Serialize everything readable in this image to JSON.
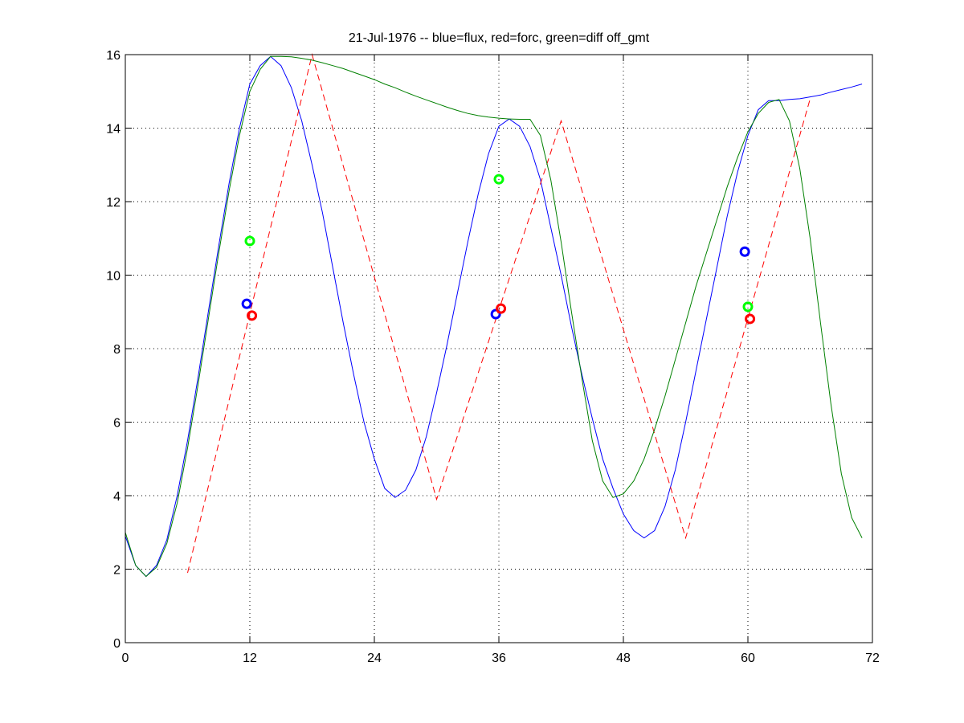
{
  "chart_data": {
    "type": "line",
    "title": "21-Jul-1976 -- blue=flux, red=forc, green=diff off_gmt",
    "xlabel": "",
    "ylabel": "",
    "xlim": [
      0,
      72
    ],
    "ylim": [
      0,
      16
    ],
    "xticks": [
      0,
      12,
      24,
      36,
      48,
      60,
      72
    ],
    "yticks": [
      0,
      2,
      4,
      6,
      8,
      10,
      12,
      14,
      16
    ],
    "grid": true,
    "series": [
      {
        "color": "#0000ff",
        "style": "solid",
        "x": [
          0,
          1,
          2,
          3,
          4,
          5,
          6,
          7,
          8,
          9,
          10,
          11,
          12,
          13,
          14,
          15,
          16,
          17,
          18,
          19,
          20,
          21,
          22,
          23,
          24,
          25,
          26,
          27,
          28,
          29,
          30,
          31,
          32,
          33,
          34,
          35,
          36,
          37,
          38,
          39,
          40,
          41,
          42,
          43,
          44,
          45,
          46,
          47,
          48,
          49,
          50,
          51,
          52,
          53,
          54,
          55,
          56,
          57,
          58,
          59,
          60,
          61,
          62,
          63,
          64,
          65,
          66,
          67,
          68,
          69,
          70,
          71
        ],
        "y": [
          2.9,
          2.1,
          1.8,
          2.1,
          2.8,
          4.0,
          5.5,
          7.2,
          9.0,
          10.8,
          12.5,
          14.0,
          15.2,
          15.7,
          15.95,
          15.7,
          15.1,
          14.2,
          13.0,
          11.7,
          10.2,
          8.7,
          7.3,
          6.0,
          5.0,
          4.2,
          3.95,
          4.15,
          4.7,
          5.6,
          6.8,
          8.1,
          9.5,
          10.9,
          12.2,
          13.3,
          14.05,
          14.25,
          14.05,
          13.5,
          12.6,
          11.3,
          10.0,
          8.6,
          7.3,
          6.1,
          5.0,
          4.2,
          3.5,
          3.05,
          2.85,
          3.05,
          3.7,
          4.7,
          6.0,
          7.4,
          8.8,
          10.2,
          11.6,
          12.8,
          13.8,
          14.5,
          14.75,
          14.75,
          14.78,
          14.8,
          14.85,
          14.9,
          14.98,
          15.05,
          15.12,
          15.2
        ]
      },
      {
        "color": "#ff0000",
        "style": "dashed",
        "x": [
          6,
          18,
          30,
          42,
          54,
          66
        ],
        "y": [
          1.9,
          16.0,
          3.9,
          14.2,
          2.85,
          14.8
        ]
      },
      {
        "color": "#008000",
        "style": "solid",
        "x": [
          0,
          1,
          2,
          3,
          4,
          5,
          6,
          7,
          8,
          9,
          10,
          11,
          12,
          13,
          14,
          15,
          16,
          17,
          18,
          19,
          20,
          21,
          22,
          23,
          24,
          25,
          26,
          27,
          28,
          29,
          30,
          31,
          32,
          33,
          34,
          35,
          36,
          37,
          38,
          39,
          40,
          41,
          42,
          43,
          44,
          45,
          46,
          47,
          48,
          49,
          50,
          51,
          52,
          53,
          54,
          55,
          56,
          57,
          58,
          59,
          60,
          61,
          62,
          63,
          64,
          65,
          66,
          67,
          68,
          69,
          70,
          71
        ],
        "y": [
          3.0,
          2.1,
          1.8,
          2.05,
          2.7,
          3.8,
          5.3,
          7.0,
          8.8,
          10.6,
          12.3,
          13.8,
          15.0,
          15.6,
          15.95,
          15.95,
          15.94,
          15.9,
          15.85,
          15.78,
          15.7,
          15.62,
          15.52,
          15.42,
          15.32,
          15.2,
          15.1,
          14.98,
          14.87,
          14.77,
          14.67,
          14.57,
          14.48,
          14.4,
          14.34,
          14.3,
          14.27,
          14.25,
          14.24,
          14.24,
          13.8,
          12.6,
          10.9,
          9.0,
          7.2,
          5.5,
          4.4,
          3.95,
          4.05,
          4.4,
          5.0,
          5.8,
          6.7,
          7.7,
          8.7,
          9.7,
          10.6,
          11.5,
          12.4,
          13.2,
          13.9,
          14.4,
          14.7,
          14.78,
          14.2,
          12.9,
          11.0,
          8.7,
          6.5,
          4.6,
          3.4,
          2.85
        ]
      }
    ],
    "markers": [
      {
        "color": "#0000ff",
        "x": [
          11.7,
          35.7,
          59.7
        ],
        "y": [
          9.22,
          8.94,
          10.64
        ]
      },
      {
        "color": "#ff0000",
        "x": [
          12.2,
          36.2,
          60.2
        ],
        "y": [
          8.9,
          9.09,
          8.81
        ]
      },
      {
        "color": "#00ff00",
        "x": [
          12.0,
          36.0,
          60.0
        ],
        "y": [
          10.93,
          12.61,
          9.14
        ]
      }
    ]
  }
}
